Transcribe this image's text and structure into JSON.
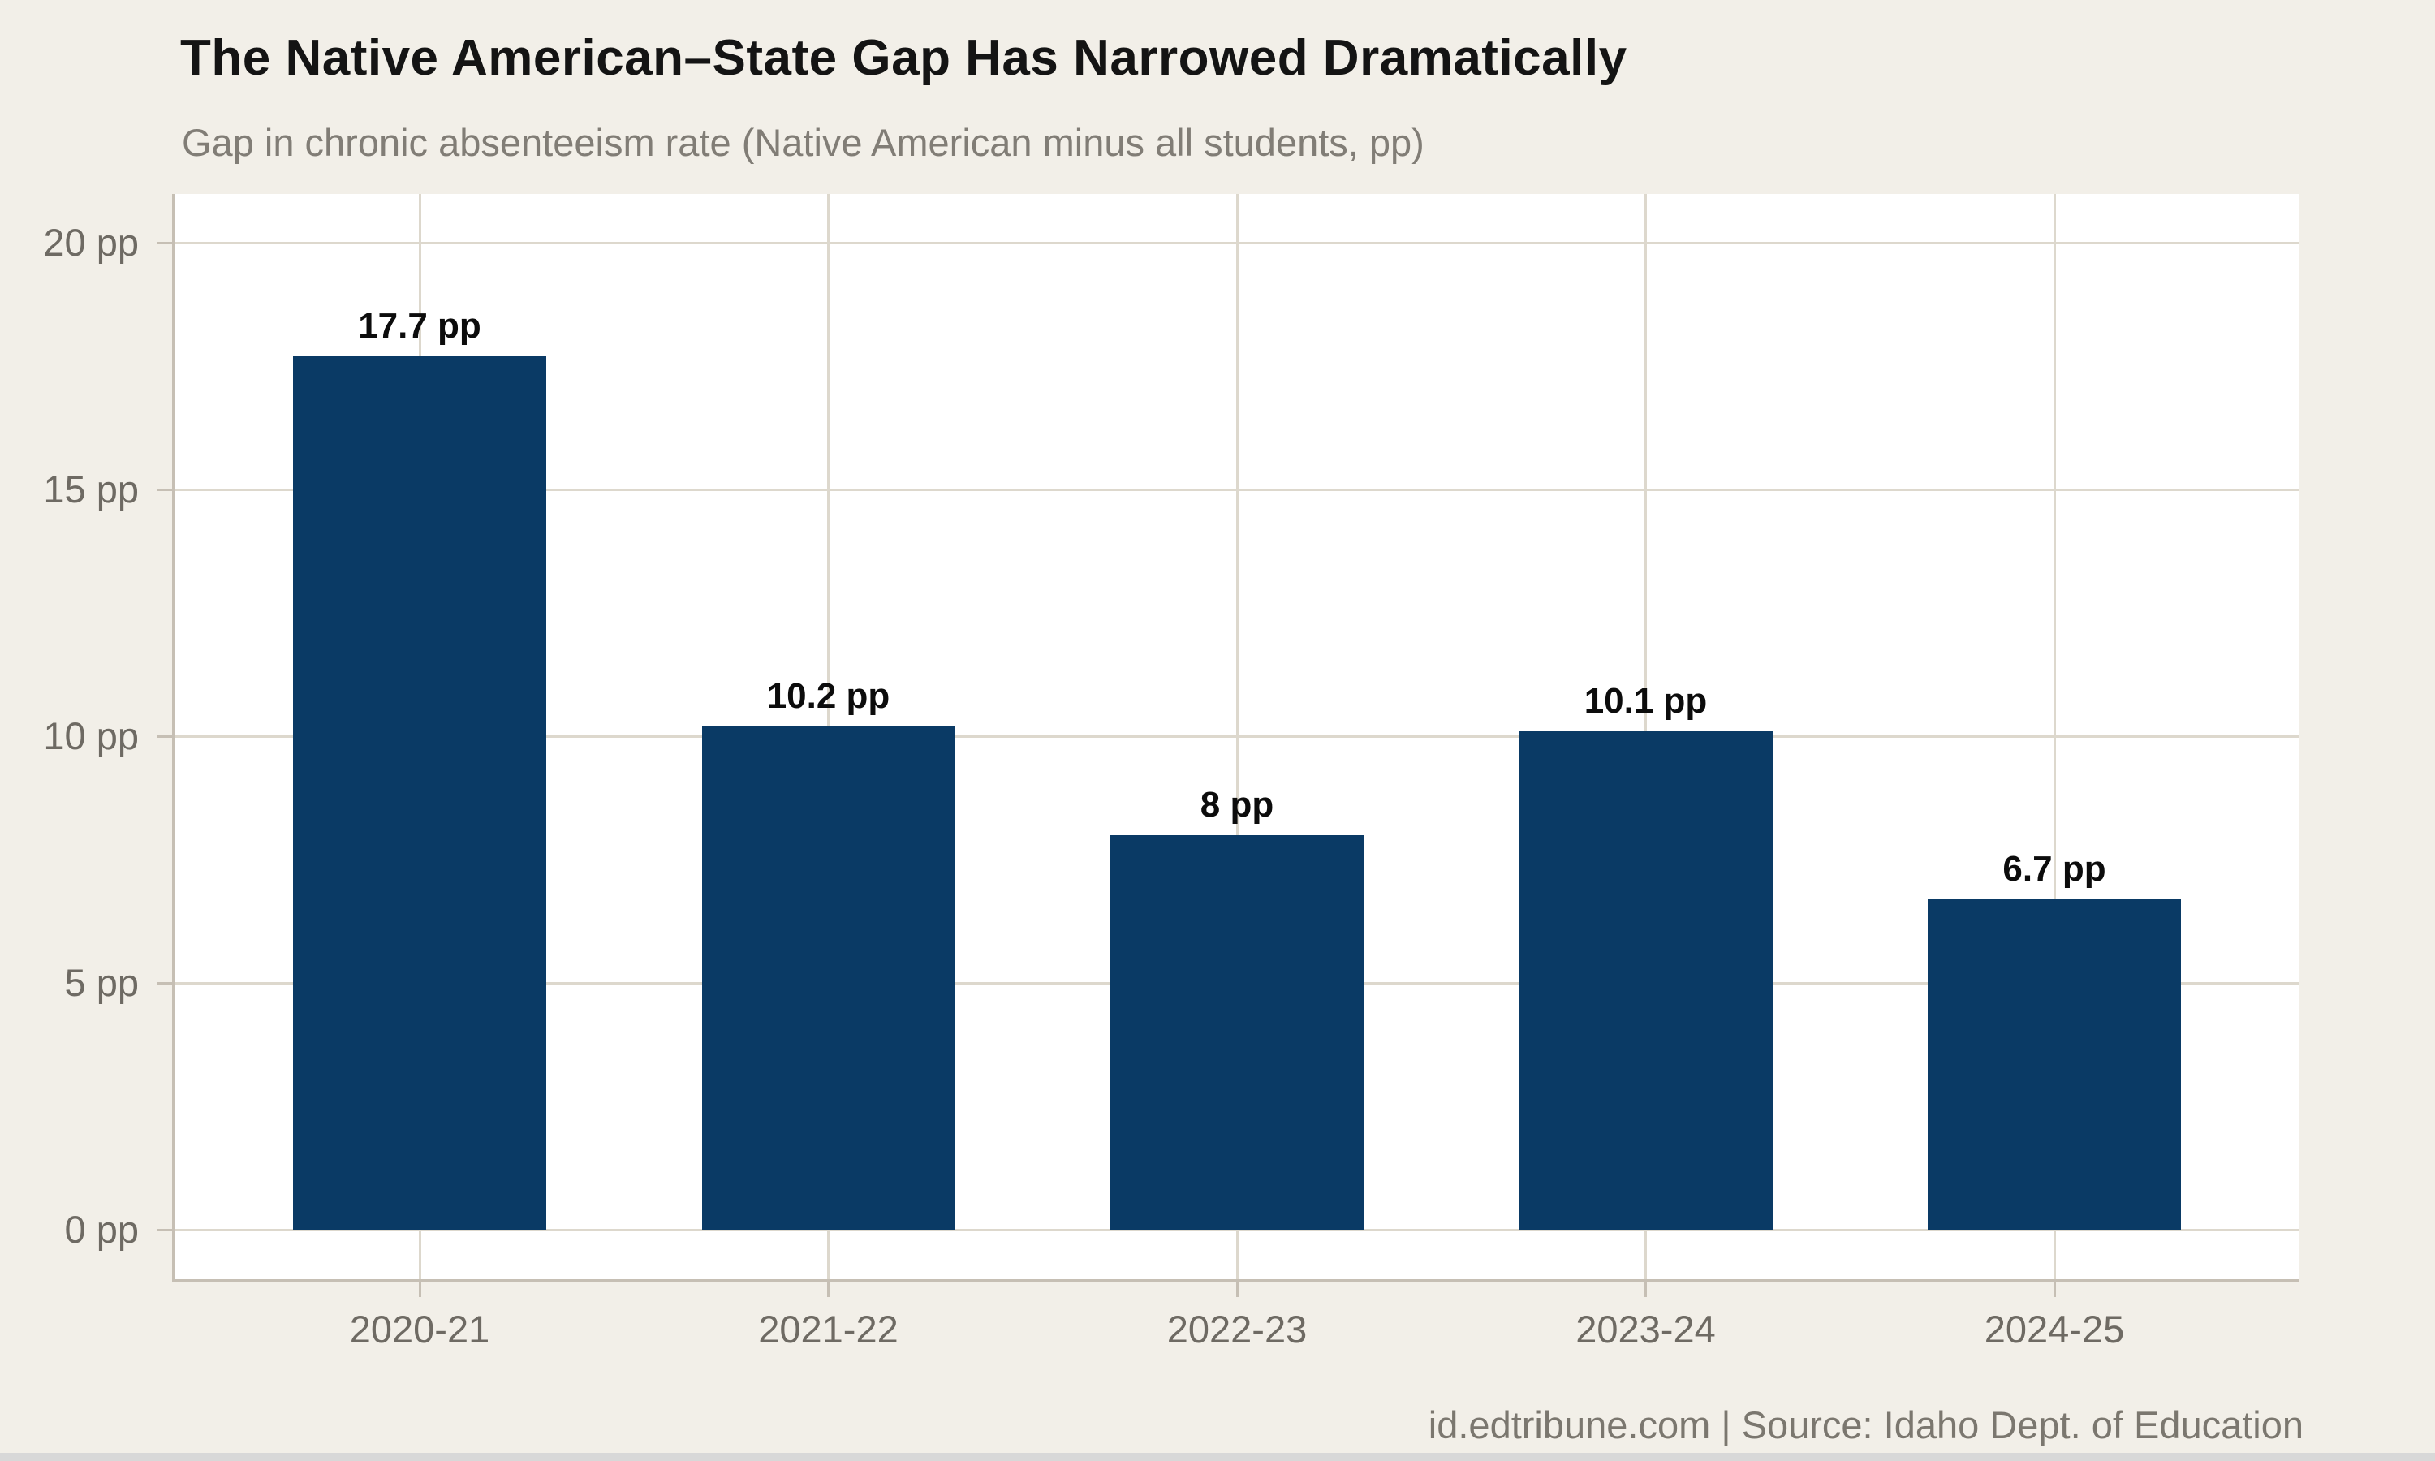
{
  "chart": {
    "title": "The Native American–State Gap Has Narrowed Dramatically",
    "subtitle": "Gap in chronic absenteeism rate (Native American minus all students, pp)",
    "footer": "id.edtribune.com | Source: Idaho Dept. of Education"
  },
  "chart_data": {
    "type": "bar",
    "title": "The Native American–State Gap Has Narrowed Dramatically",
    "subtitle": "Gap in chronic absenteeism rate (Native American minus all students, pp)",
    "source": "id.edtribune.com | Source: Idaho Dept. of Education",
    "categories": [
      "2020-21",
      "2021-22",
      "2022-23",
      "2023-24",
      "2024-25"
    ],
    "values": [
      17.7,
      10.2,
      8,
      10.1,
      6.7
    ],
    "value_labels": [
      "17.7 pp",
      "10.2 pp",
      "8 pp",
      "10.1 pp",
      "6.7 pp"
    ],
    "y_tick_values": [
      0,
      5,
      10,
      15,
      20
    ],
    "y_tick_labels": [
      "0 pp",
      "5 pp",
      "10 pp",
      "15 pp",
      "20 pp"
    ],
    "xlabel": "",
    "ylabel": "",
    "ylim": [
      -1,
      21
    ],
    "grid": true,
    "legend": false,
    "bar_color": "#0a3a65",
    "background_color": "#f2efe8",
    "plot_background_color": "#ffffff",
    "grid_color": "#ddd8cd",
    "axis_color": "#c6bfb4",
    "label_color": "#6e6a63"
  }
}
